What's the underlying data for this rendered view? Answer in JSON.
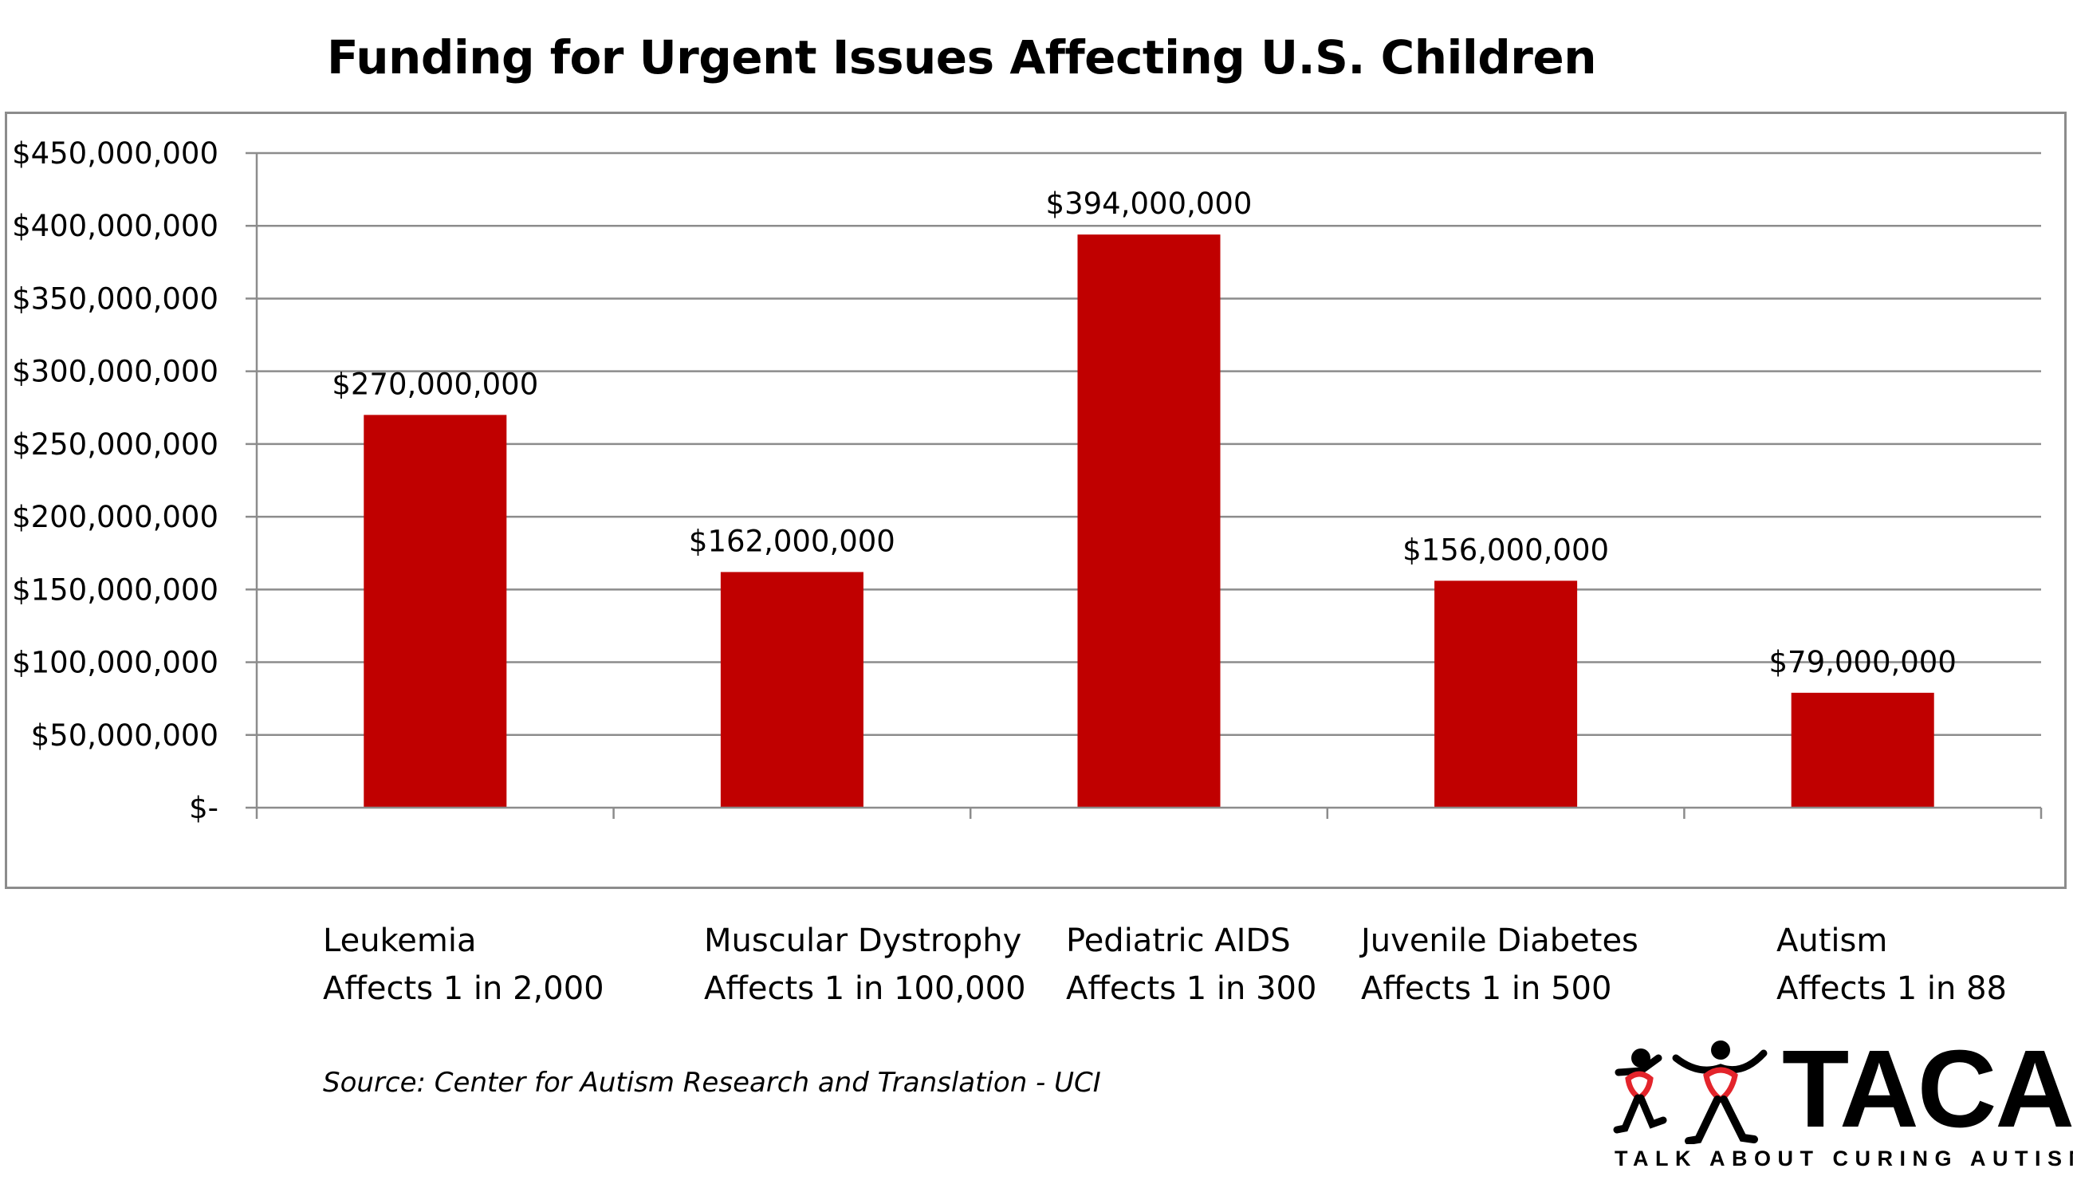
{
  "chart_data": {
    "type": "bar",
    "title": "Funding for Urgent Issues Affecting U.S. Children",
    "categories": [
      {
        "name": "Leukemia",
        "prevalence": "Affects 1 in 2,000"
      },
      {
        "name": "Muscular Dystrophy",
        "prevalence": "Affects 1 in 100,000"
      },
      {
        "name": "Pediatric AIDS",
        "prevalence": "Affects 1 in 300"
      },
      {
        "name": "Juvenile Diabetes",
        "prevalence": "Affects 1 in 500"
      },
      {
        "name": "Autism",
        "prevalence": "Affects 1 in 88"
      }
    ],
    "values": [
      270000000,
      162000000,
      394000000,
      156000000,
      79000000
    ],
    "data_labels": [
      "$270,000,000",
      "$162,000,000",
      "$394,000,000",
      "$156,000,000",
      "$79,000,000"
    ],
    "ylim": [
      0,
      450000000
    ],
    "y_ticks": [
      0,
      50000000,
      100000000,
      150000000,
      200000000,
      250000000,
      300000000,
      350000000,
      400000000,
      450000000
    ],
    "y_tick_labels": [
      "$-",
      "$50,000,000",
      "$100,000,000",
      "$150,000,000",
      "$200,000,000",
      "$250,000,000",
      "$300,000,000",
      "$350,000,000",
      "$400,000,000",
      "$450,000,000"
    ],
    "grid": true,
    "bar_color": "#c00000",
    "xlabel": "",
    "ylabel": ""
  },
  "source": "Source:  Center for Autism Research and Translation - UCI",
  "logo": {
    "wordmark": "TACA",
    "tagline": "TALK ABOUT CURING AUTISM",
    "accent_color": "#e3242b"
  }
}
